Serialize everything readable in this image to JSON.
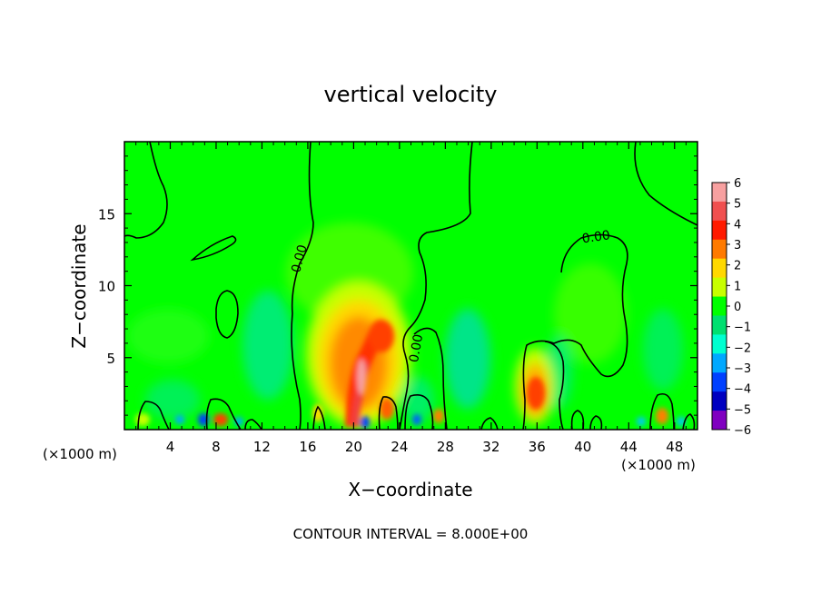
{
  "chart_data": {
    "type": "heatmap",
    "title": "vertical velocity",
    "xlabel": "X−coordinate",
    "ylabel": "Z−coordinate",
    "x_unit_left": "(×1000 m)",
    "x_unit_right": "(×1000 m)",
    "footer": "CONTOUR INTERVAL = 8.000E+00",
    "xlim": [
      0,
      50
    ],
    "ylim": [
      0,
      20
    ],
    "x_ticks": [
      4,
      8,
      12,
      16,
      20,
      24,
      28,
      32,
      36,
      40,
      44,
      48
    ],
    "y_ticks": [
      5,
      10,
      15
    ],
    "colorbar": {
      "levels": [
        6,
        5,
        4,
        3,
        2,
        1,
        0,
        -1,
        -2,
        -3,
        -4,
        -5,
        -6
      ],
      "level_labels": [
        "6",
        "5",
        "4",
        "3",
        "2",
        "1",
        "0",
        "−1",
        "−2",
        "−3",
        "−4",
        "−5",
        "−6"
      ],
      "colors": [
        "#f7a0a0",
        "#f05050",
        "#ff1a00",
        "#ff7a00",
        "#ffd800",
        "#c8ff00",
        "#00ff00",
        "#00e070",
        "#00ffd0",
        "#00a8ff",
        "#0040ff",
        "#0000c0",
        "#8000c0"
      ]
    },
    "contour_labels": [
      {
        "text": "0.00",
        "x": 15.6,
        "z": 11.8
      },
      {
        "text": "0.00",
        "x": 25.8,
        "z": 5.6
      },
      {
        "text": "0.00",
        "x": 41.2,
        "z": 13.1
      }
    ],
    "features": [
      {
        "kind": "updraft",
        "x": 20.4,
        "z": 3.6,
        "w": 5.5
      },
      {
        "kind": "updraft",
        "x": 22.3,
        "z": 6.6,
        "w": 3.5
      },
      {
        "kind": "updraft",
        "x": 35.8,
        "z": 2.3,
        "w": 3.2
      },
      {
        "kind": "updraft",
        "x": 8.3,
        "z": 0.6,
        "w": 3.0
      },
      {
        "kind": "updraft",
        "x": 27.5,
        "z": 0.8,
        "w": 2.0
      },
      {
        "kind": "updraft",
        "x": 46.8,
        "z": 0.9,
        "w": 2.0
      },
      {
        "kind": "updraft",
        "x": 23.6,
        "z": 1.4,
        "w": 3.0
      },
      {
        "kind": "downdraft",
        "x": 6.9,
        "z": 0.5,
        "w": -3.0
      },
      {
        "kind": "downdraft",
        "x": 20.3,
        "z": 0.6,
        "w": -2.5
      },
      {
        "kind": "downdraft",
        "x": 25.7,
        "z": 0.6,
        "w": -2.8
      },
      {
        "kind": "downdraft",
        "x": 30.3,
        "z": 4.2,
        "w": -1.8
      }
    ]
  }
}
